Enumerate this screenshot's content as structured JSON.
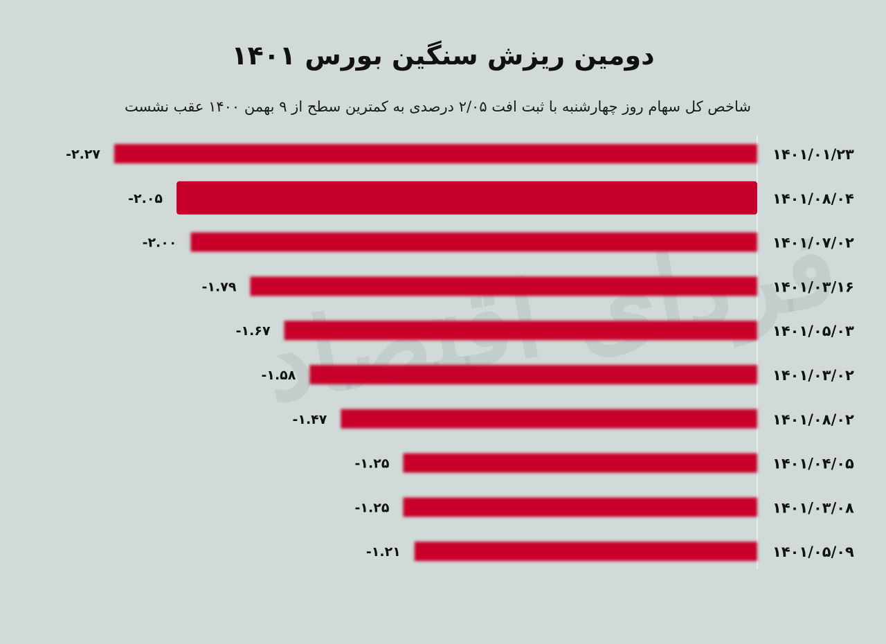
{
  "chart_data": {
    "type": "bar",
    "orientation": "horizontal",
    "title": "دومین ریزش سنگین بورس ۱۴۰۱",
    "subtitle": "شاخص کل سهام روز چهارشنبه با ثبت افت ۲/۰۵ درصدی به کمترین سطح از ۹ بهمن ۱۴۰۰ عقب نشست",
    "categories": [
      "۱۴۰۱/۰۱/۲۳",
      "۱۴۰۱/۰۸/۰۴",
      "۱۴۰۱/۰۷/۰۲",
      "۱۴۰۱/۰۳/۱۶",
      "۱۴۰۱/۰۵/۰۳",
      "۱۴۰۱/۰۳/۰۲",
      "۱۴۰۱/۰۸/۰۲",
      "۱۴۰۱/۰۴/۰۵",
      "۱۴۰۱/۰۳/۰۸",
      "۱۴۰۱/۰۵/۰۹"
    ],
    "values": [
      -2.27,
      -2.05,
      -2.0,
      -1.79,
      -1.67,
      -1.58,
      -1.47,
      -1.25,
      -1.25,
      -1.21
    ],
    "value_labels": [
      "-۲.۲۷",
      "-۲.۰۵",
      "-۲.۰۰",
      "-۱.۷۹",
      "-۱.۶۷",
      "-۱.۵۸",
      "-۱.۴۷",
      "-۱.۲۵",
      "-۱.۲۵",
      "-۱.۲۱"
    ],
    "highlight_index": 1,
    "bar_color": "#c8002c",
    "xlim": [
      -2.27,
      0
    ],
    "xlabel": "",
    "ylabel": "",
    "grid": false,
    "legend": "none"
  },
  "colors": {
    "background": "#d0dad8",
    "bar": "#c8002c",
    "text": "#111111"
  }
}
